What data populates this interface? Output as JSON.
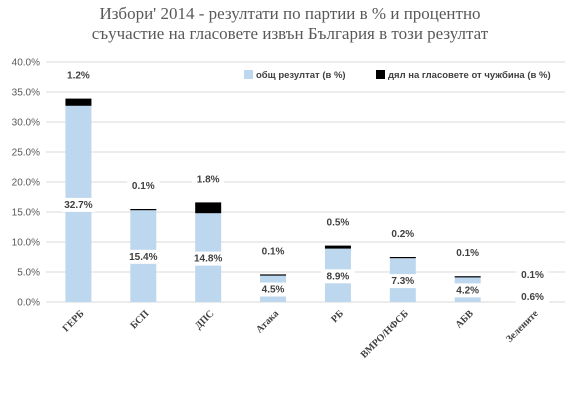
{
  "chart_data": {
    "type": "bar",
    "stacked": true,
    "title_line1": "Избори' 2014 - резултати по партии в % и процентно",
    "title_line2": "съучастие на гласовете извън България в този резултат",
    "categories": [
      "ГЕРБ",
      "БСП",
      "ДПС",
      "Атака",
      "РБ",
      "ВМРО/НФСБ",
      "АБВ",
      "Зелените"
    ],
    "series": [
      {
        "name": "общ резултат (в %)",
        "color": "#bdd7ee",
        "values": [
          32.7,
          15.4,
          14.8,
          4.5,
          8.9,
          7.3,
          4.2,
          0.6
        ],
        "labels": [
          "32.7%",
          "15.4%",
          "14.8%",
          "4.5%",
          "8.9%",
          "7.3%",
          "4.2%",
          "0.6%"
        ]
      },
      {
        "name": "дял на гласовете от чужбина (в %)",
        "color": "#000000",
        "values": [
          1.2,
          0.1,
          1.8,
          0.1,
          0.5,
          0.2,
          0.1,
          0.1
        ],
        "labels": [
          "1.2%",
          "0.1%",
          "1.8%",
          "0.1%",
          "0.5%",
          "0.2%",
          "0.1%",
          "0.1%"
        ]
      }
    ],
    "ylim": [
      0,
      40
    ],
    "yticks": [
      "0.0%",
      "5.0%",
      "10.0%",
      "15.0%",
      "20.0%",
      "25.0%",
      "30.0%",
      "35.0%",
      "40.0%"
    ],
    "ytick_values": [
      0,
      5,
      10,
      15,
      20,
      25,
      30,
      35,
      40
    ],
    "legend_position": "top-right",
    "grid": true
  }
}
